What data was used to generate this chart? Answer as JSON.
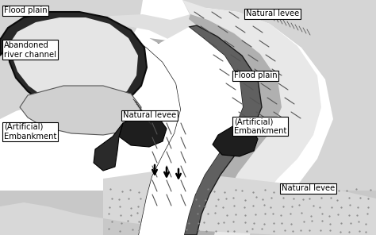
{
  "labels": {
    "flood_plain_top": "Flood plain",
    "flood_plain_right": "Flood plain",
    "abandoned_channel": "Abandoned\nriver channel",
    "natural_levee_left": "Natural levee",
    "natural_levee_top_right": "Natural levee",
    "natural_levee_bottom_right": "Natural levee",
    "artificial_left": "(Artificial)\nEmbankment",
    "artificial_right": "(Artificial)\nEmbankment"
  },
  "colors": {
    "white": "#ffffff",
    "bg": "#f5f5f5",
    "flood_plain_light": "#d0d0d0",
    "levee_light": "#c8c8c8",
    "levee_mid": "#a8a8a8",
    "levee_dark": "#888888",
    "channel_dark": "#383838",
    "embankment_dark": "#282828",
    "embankment_mid": "#606060",
    "dotted_bg": "#c8c8c8",
    "stroke": "#000000",
    "river_white": "#ffffff",
    "hatch_gray": "#707070"
  }
}
